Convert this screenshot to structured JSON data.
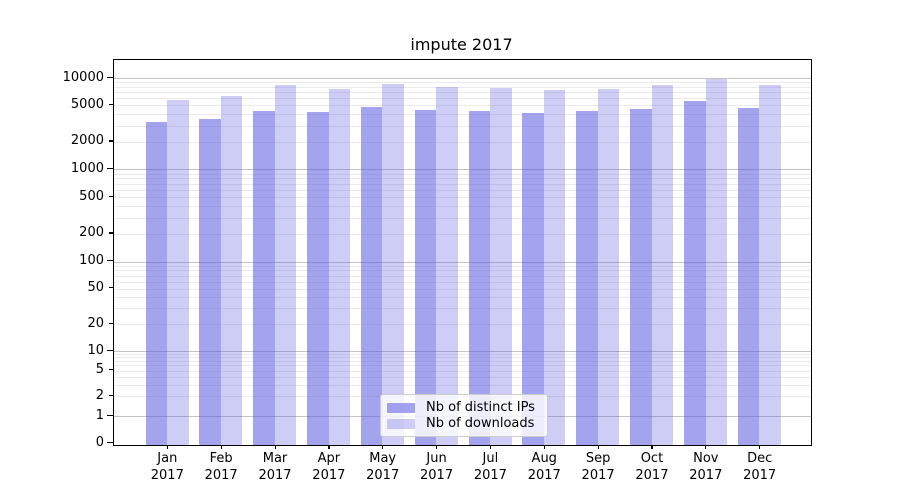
{
  "title": "impute 2017",
  "chart_data": {
    "type": "bar",
    "title": "impute 2017",
    "categories": [
      "Jan 2017",
      "Feb 2017",
      "Mar 2017",
      "Apr 2017",
      "May 2017",
      "Jun 2017",
      "Jul 2017",
      "Aug 2017",
      "Sep 2017",
      "Oct 2017",
      "Nov 2017",
      "Dec 2017"
    ],
    "series": [
      {
        "name": "Nb of distinct IPs",
        "color": "#5a5ae0",
        "alpha": 0.55,
        "values": [
          3300,
          3600,
          4300,
          4250,
          4850,
          4450,
          4300,
          4150,
          4350,
          4600,
          5600,
          4750
        ]
      },
      {
        "name": "Nb of downloads",
        "color": "#5a5ae0",
        "alpha": 0.3,
        "values": [
          5750,
          6300,
          8300,
          7550,
          8700,
          8000,
          7700,
          7400,
          7550,
          8300,
          9800,
          8400
        ]
      }
    ],
    "xlabel": "",
    "ylabel": "",
    "y_scale": "symlog",
    "ylim": [
      0,
      13000
    ],
    "y_ticks_labeled": [
      0,
      1,
      2,
      5,
      10,
      20,
      50,
      100,
      200,
      500,
      1000,
      2000,
      5000,
      10000
    ],
    "y_major_ticks": [
      0,
      1,
      10,
      100,
      1000,
      10000
    ],
    "grid": "horizontal",
    "grid_major_color": "#c3c3c3",
    "grid_minor_color": "#eaeaea",
    "legend_position": "lower center inside",
    "legend": [
      "Nb of distinct IPs",
      "Nb of downloads"
    ]
  }
}
